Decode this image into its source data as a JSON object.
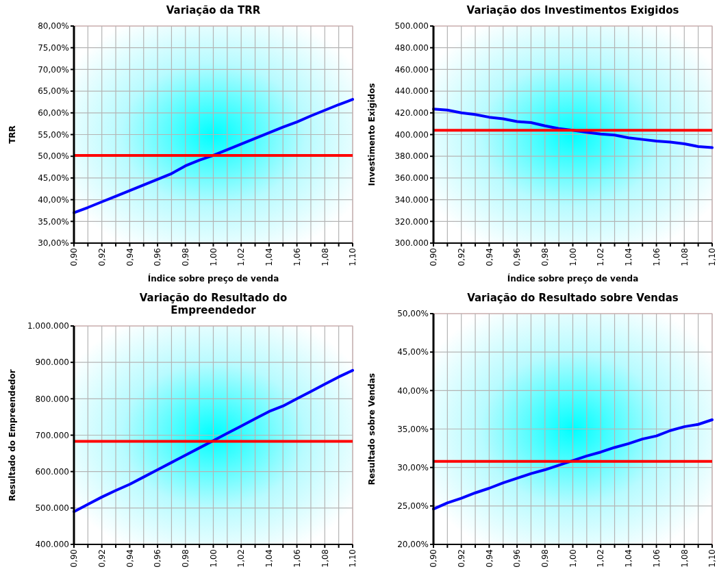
{
  "chart_data": [
    {
      "type": "line",
      "title": "Variação da TRR",
      "xlabel": "Índice sobre preço de venda",
      "ylabel": "TRR",
      "grid": true,
      "line_style": "solid",
      "marker": "none",
      "x": [
        0.9,
        0.91,
        0.92,
        0.93,
        0.94,
        0.95,
        0.96,
        0.97,
        0.98,
        0.99,
        1.0,
        1.01,
        1.02,
        1.03,
        1.04,
        1.05,
        1.06,
        1.07,
        1.08,
        1.09,
        1.1
      ],
      "xlim": [
        0.9,
        1.1
      ],
      "xticks": [
        {
          "value": 0.9,
          "label": "0,90"
        },
        {
          "value": 0.91,
          "label": null
        },
        {
          "value": 0.92,
          "label": "0,92"
        },
        {
          "value": 0.93,
          "label": null
        },
        {
          "value": 0.94,
          "label": "0,94"
        },
        {
          "value": 0.95,
          "label": null
        },
        {
          "value": 0.96,
          "label": "0,96"
        },
        {
          "value": 0.97,
          "label": null
        },
        {
          "value": 0.98,
          "label": "0,98"
        },
        {
          "value": 0.99,
          "label": null
        },
        {
          "value": 1.0,
          "label": "1,00"
        },
        {
          "value": 1.01,
          "label": null
        },
        {
          "value": 1.02,
          "label": "1,02"
        },
        {
          "value": 1.03,
          "label": null
        },
        {
          "value": 1.04,
          "label": "1,04"
        },
        {
          "value": 1.05,
          "label": null
        },
        {
          "value": 1.06,
          "label": "1,06"
        },
        {
          "value": 1.07,
          "label": null
        },
        {
          "value": 1.08,
          "label": "1,08"
        },
        {
          "value": 1.09,
          "label": null
        },
        {
          "value": 1.1,
          "label": "1,10"
        }
      ],
      "ylim": [
        30,
        80
      ],
      "yticks": [
        {
          "value": 30,
          "label": "30,00%"
        },
        {
          "value": 35,
          "label": "35,00%"
        },
        {
          "value": 40,
          "label": "40,00%"
        },
        {
          "value": 45,
          "label": "45,00%"
        },
        {
          "value": 50,
          "label": "50,00%"
        },
        {
          "value": 55,
          "label": "55,00%"
        },
        {
          "value": 60,
          "label": "60,00%"
        },
        {
          "value": 65,
          "label": "65,00%"
        },
        {
          "value": 70,
          "label": "70,00%"
        },
        {
          "value": 75,
          "label": "75,00%"
        },
        {
          "value": 80,
          "label": "80,00%"
        }
      ],
      "series": [
        {
          "color": "#0000ff",
          "values": [
            37,
            38.2,
            39.5,
            40.8,
            42.1,
            43.4,
            44.7,
            46,
            47.8,
            49.1,
            50.2,
            51.5,
            52.8,
            54.1,
            55.4,
            56.7,
            57.9,
            59.3,
            60.6,
            61.9,
            63.1
          ]
        }
      ],
      "ref_lines": [
        {
          "axis": "y",
          "value": 50.2,
          "color": "#ff0000"
        }
      ]
    },
    {
      "type": "line",
      "title": "Variação dos Investimentos Exigidos",
      "xlabel": "Índice sobre preço de venda",
      "ylabel": "Investimento Exigidos",
      "grid": true,
      "line_style": "solid",
      "marker": "none",
      "x": [
        0.9,
        0.91,
        0.92,
        0.93,
        0.94,
        0.95,
        0.96,
        0.97,
        0.98,
        0.99,
        1.0,
        1.01,
        1.02,
        1.03,
        1.04,
        1.05,
        1.06,
        1.07,
        1.08,
        1.09,
        1.1
      ],
      "xlim": [
        0.9,
        1.1
      ],
      "xticks": [
        {
          "value": 0.9,
          "label": "0,90"
        },
        {
          "value": 0.91,
          "label": null
        },
        {
          "value": 0.92,
          "label": "0,92"
        },
        {
          "value": 0.93,
          "label": null
        },
        {
          "value": 0.94,
          "label": "0,94"
        },
        {
          "value": 0.95,
          "label": null
        },
        {
          "value": 0.96,
          "label": "0,96"
        },
        {
          "value": 0.97,
          "label": null
        },
        {
          "value": 0.98,
          "label": "0,98"
        },
        {
          "value": 0.99,
          "label": null
        },
        {
          "value": 1.0,
          "label": "1,00"
        },
        {
          "value": 1.01,
          "label": null
        },
        {
          "value": 1.02,
          "label": "1,02"
        },
        {
          "value": 1.03,
          "label": null
        },
        {
          "value": 1.04,
          "label": "1,04"
        },
        {
          "value": 1.05,
          "label": null
        },
        {
          "value": 1.06,
          "label": "1,06"
        },
        {
          "value": 1.07,
          "label": null
        },
        {
          "value": 1.08,
          "label": "1,08"
        },
        {
          "value": 1.09,
          "label": null
        },
        {
          "value": 1.1,
          "label": "1,10"
        }
      ],
      "ylim": [
        300000,
        500000
      ],
      "yticks": [
        {
          "value": 300000,
          "label": "300.000"
        },
        {
          "value": 320000,
          "label": "320.000"
        },
        {
          "value": 340000,
          "label": "340.000"
        },
        {
          "value": 360000,
          "label": "360.000"
        },
        {
          "value": 380000,
          "label": "380.000"
        },
        {
          "value": 400000,
          "label": "400.000"
        },
        {
          "value": 420000,
          "label": "420.000"
        },
        {
          "value": 440000,
          "label": "440.000"
        },
        {
          "value": 460000,
          "label": "460.000"
        },
        {
          "value": 480000,
          "label": "480.000"
        },
        {
          "value": 500000,
          "label": "500.000"
        }
      ],
      "series": [
        {
          "color": "#0000ff",
          "values": [
            423500,
            422500,
            420000,
            418500,
            416000,
            414500,
            412000,
            411000,
            408000,
            405500,
            404000,
            402000,
            400500,
            399500,
            397000,
            395500,
            394000,
            393000,
            391500,
            389000,
            388000
          ]
        }
      ],
      "ref_lines": [
        {
          "axis": "y",
          "value": 404000,
          "color": "#ff0000"
        }
      ]
    },
    {
      "type": "line",
      "title": "Variação do Resultado do Empreendedor",
      "ylabel": "Resultado do Empreendedor",
      "grid": true,
      "line_style": "solid",
      "marker": "none",
      "x": [
        0.9,
        0.91,
        0.92,
        0.93,
        0.94,
        0.95,
        0.96,
        0.97,
        0.98,
        0.99,
        1.0,
        1.01,
        1.02,
        1.03,
        1.04,
        1.05,
        1.06,
        1.07,
        1.08,
        1.09,
        1.1
      ],
      "xlim": [
        0.9,
        1.1
      ],
      "xticks": [
        {
          "value": 0.9,
          "label": "0,90"
        },
        {
          "value": 0.91,
          "label": null
        },
        {
          "value": 0.92,
          "label": "0,92"
        },
        {
          "value": 0.93,
          "label": null
        },
        {
          "value": 0.94,
          "label": "0,94"
        },
        {
          "value": 0.95,
          "label": null
        },
        {
          "value": 0.96,
          "label": "0,96"
        },
        {
          "value": 0.97,
          "label": null
        },
        {
          "value": 0.98,
          "label": "0,98"
        },
        {
          "value": 0.99,
          "label": null
        },
        {
          "value": 1.0,
          "label": "1,00"
        },
        {
          "value": 1.01,
          "label": null
        },
        {
          "value": 1.02,
          "label": "1,02"
        },
        {
          "value": 1.03,
          "label": null
        },
        {
          "value": 1.04,
          "label": "1,04"
        },
        {
          "value": 1.05,
          "label": null
        },
        {
          "value": 1.06,
          "label": "1,06"
        },
        {
          "value": 1.07,
          "label": null
        },
        {
          "value": 1.08,
          "label": "1,08"
        },
        {
          "value": 1.09,
          "label": null
        },
        {
          "value": 1.1,
          "label": "1,10"
        }
      ],
      "ylim": [
        400000,
        1000000
      ],
      "yticks": [
        {
          "value": 400000,
          "label": "400.000"
        },
        {
          "value": 500000,
          "label": "500.000"
        },
        {
          "value": 600000,
          "label": "600.000"
        },
        {
          "value": 700000,
          "label": "700.000"
        },
        {
          "value": 800000,
          "label": "800.000"
        },
        {
          "value": 900000,
          "label": "900.000"
        },
        {
          "value": 1000000,
          "label": "1.000.000"
        }
      ],
      "series": [
        {
          "color": "#0000ff",
          "values": [
            490000,
            510000,
            530000,
            548000,
            565000,
            585000,
            605000,
            625000,
            645000,
            665000,
            685000,
            705000,
            725000,
            745000,
            765000,
            780000,
            800000,
            820000,
            840000,
            860000,
            878000
          ]
        }
      ],
      "ref_lines": [
        {
          "axis": "y",
          "value": 683000,
          "color": "#ff0000"
        }
      ]
    },
    {
      "type": "line",
      "title": "Variação do Resultado sobre Vendas",
      "ylabel": "Resultado sobre Vendas",
      "grid": true,
      "line_style": "solid",
      "marker": "none",
      "x": [
        0.9,
        0.91,
        0.92,
        0.93,
        0.94,
        0.95,
        0.96,
        0.97,
        0.98,
        0.99,
        1.0,
        1.01,
        1.02,
        1.03,
        1.04,
        1.05,
        1.06,
        1.07,
        1.08,
        1.09,
        1.1
      ],
      "xlim": [
        0.9,
        1.1
      ],
      "xticks": [
        {
          "value": 0.9,
          "label": "0,90"
        },
        {
          "value": 0.91,
          "label": null
        },
        {
          "value": 0.92,
          "label": "0,92"
        },
        {
          "value": 0.93,
          "label": null
        },
        {
          "value": 0.94,
          "label": "0,94"
        },
        {
          "value": 0.95,
          "label": null
        },
        {
          "value": 0.96,
          "label": "0,96"
        },
        {
          "value": 0.97,
          "label": null
        },
        {
          "value": 0.98,
          "label": "0,98"
        },
        {
          "value": 0.99,
          "label": null
        },
        {
          "value": 1.0,
          "label": "1,00"
        },
        {
          "value": 1.01,
          "label": null
        },
        {
          "value": 1.02,
          "label": "1,02"
        },
        {
          "value": 1.03,
          "label": null
        },
        {
          "value": 1.04,
          "label": "1,04"
        },
        {
          "value": 1.05,
          "label": null
        },
        {
          "value": 1.06,
          "label": "1,06"
        },
        {
          "value": 1.07,
          "label": null
        },
        {
          "value": 1.08,
          "label": "1,08"
        },
        {
          "value": 1.09,
          "label": null
        },
        {
          "value": 1.1,
          "label": "1,10"
        }
      ],
      "ylim": [
        20,
        50
      ],
      "yticks": [
        {
          "value": 20,
          "label": "20,00%"
        },
        {
          "value": 25,
          "label": "25,00%"
        },
        {
          "value": 30,
          "label": "30,00%"
        },
        {
          "value": 35,
          "label": "35,00%"
        },
        {
          "value": 40,
          "label": "40,00%"
        },
        {
          "value": 45,
          "label": "45,00%"
        },
        {
          "value": 50,
          "label": "50,00%"
        }
      ],
      "series": [
        {
          "color": "#0000ff",
          "values": [
            24.6,
            25.4,
            26.0,
            26.7,
            27.3,
            28.0,
            28.6,
            29.2,
            29.7,
            30.3,
            30.9,
            31.5,
            32.0,
            32.6,
            33.1,
            33.7,
            34.1,
            34.8,
            35.3,
            35.6,
            36.2
          ]
        }
      ],
      "ref_lines": [
        {
          "axis": "y",
          "value": 30.8,
          "color": "#ff0000"
        }
      ]
    }
  ]
}
